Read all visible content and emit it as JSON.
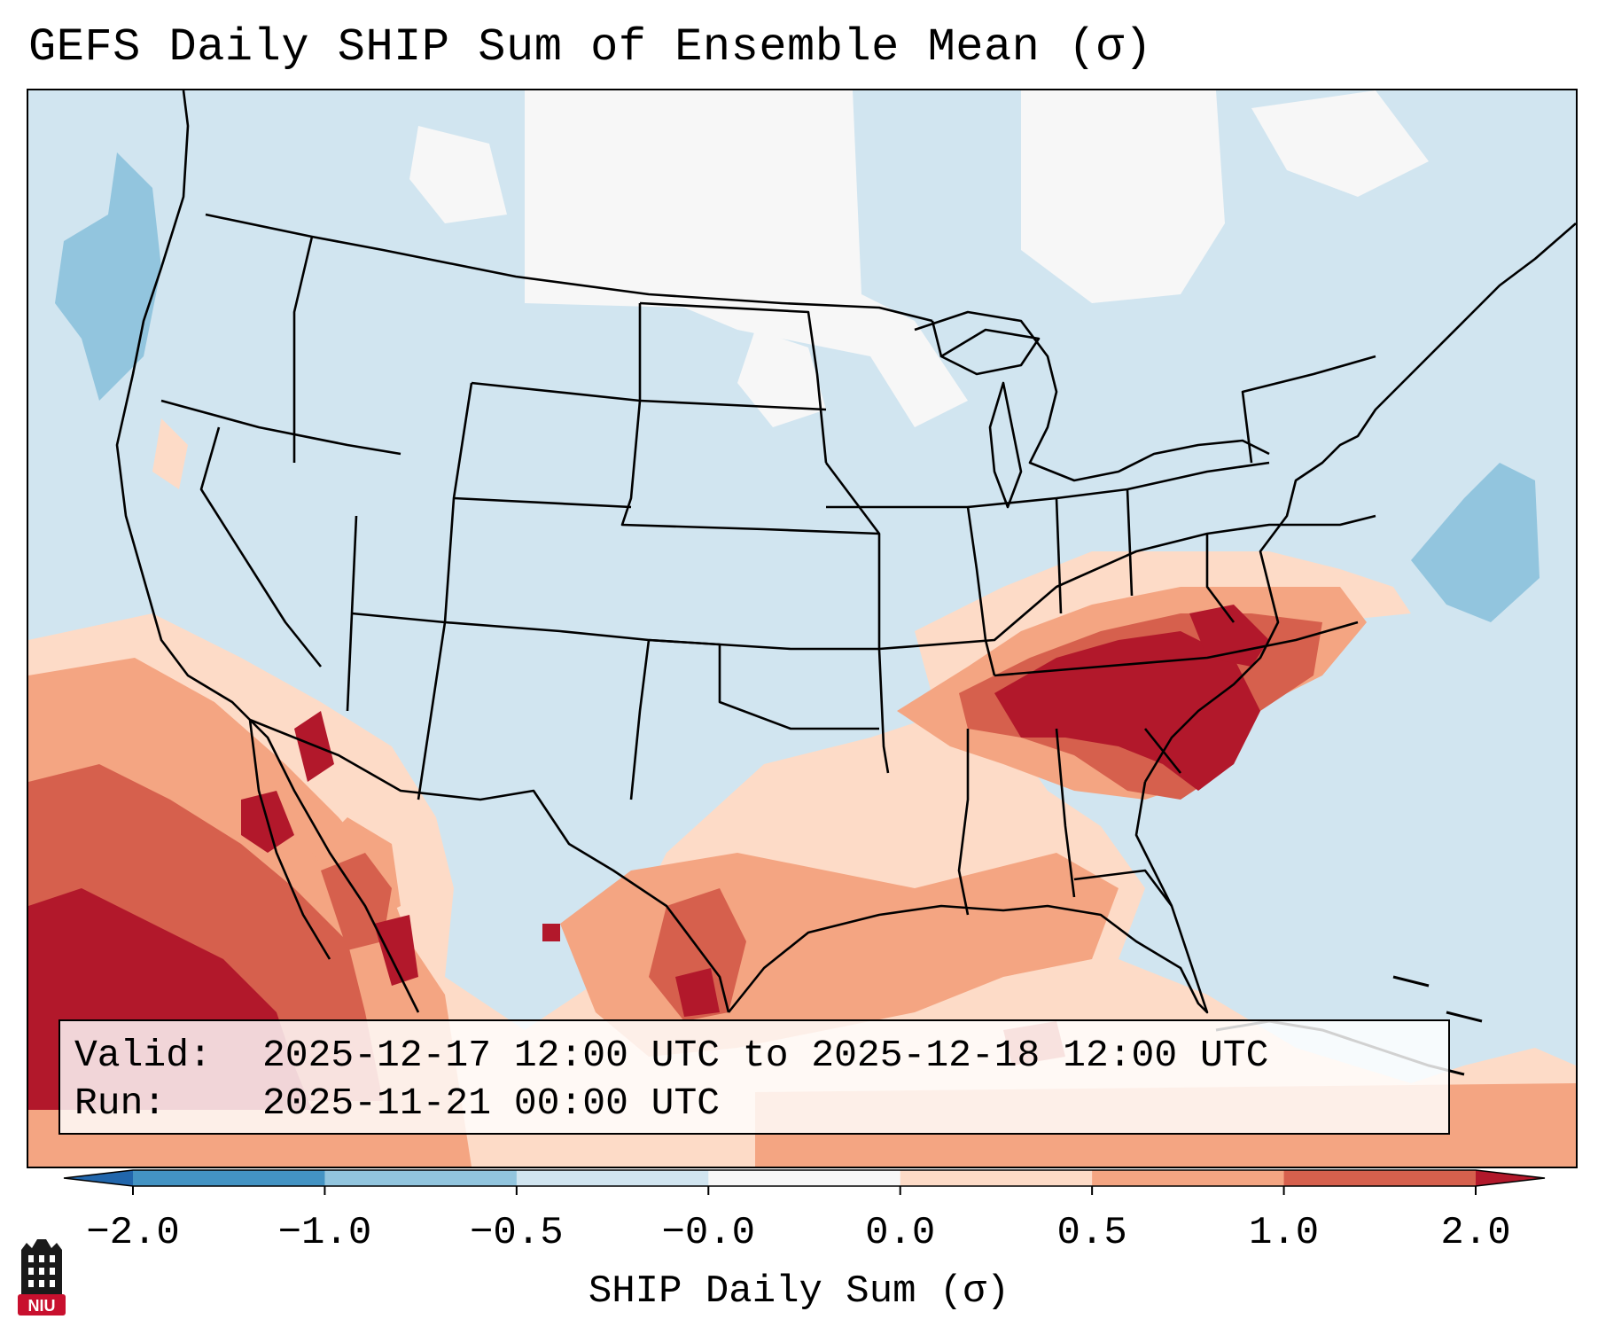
{
  "title": "GEFS Daily SHIP Sum of Ensemble Mean (σ)",
  "info": {
    "valid_label": "Valid:",
    "valid_value": "2025-12-17 12:00 UTC to 2025-12-18 12:00 UTC",
    "run_label": "Run:",
    "run_value": "2025-11-21 00:00 UTC"
  },
  "colorbar": {
    "label": "SHIP Daily Sum (σ)",
    "ticks": [
      "−2.0",
      "−1.0",
      "−0.5",
      "−0.0",
      "0.0",
      "0.5",
      "1.0",
      "2.0"
    ],
    "bins": [
      {
        "range": "<-2.0",
        "color": "#2166ac"
      },
      {
        "range": "-2.0 to -1.0",
        "color": "#4393c3"
      },
      {
        "range": "-1.0 to -0.5",
        "color": "#92c5de"
      },
      {
        "range": "-0.5 to -0.0",
        "color": "#d1e5f0"
      },
      {
        "range": "-0.0 to 0.0",
        "color": "#f7f7f7"
      },
      {
        "range": "0.0 to 0.5",
        "color": "#fddbc7"
      },
      {
        "range": "0.5 to 1.0",
        "color": "#f4a582"
      },
      {
        "range": "1.0 to 2.0",
        "color": "#d6604d"
      },
      {
        "range": ">2.0",
        "color": "#b2182b"
      }
    ]
  },
  "logo": {
    "text": "NIU",
    "bg_color": "#c8102e"
  }
}
